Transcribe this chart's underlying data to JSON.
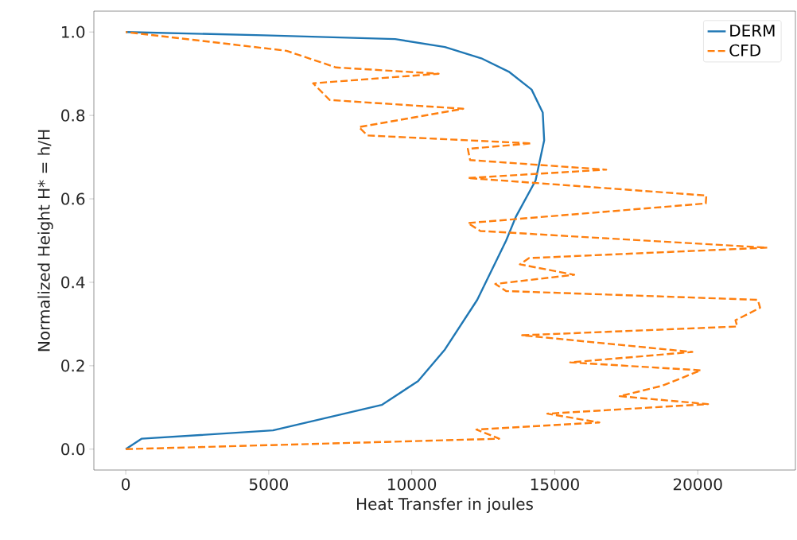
{
  "chart_data": {
    "type": "line",
    "xlabel": "Heat Transfer in joules",
    "ylabel": "Normalized Height H* = h/H",
    "xlim": [
      -1115,
      23415
    ],
    "ylim": [
      -0.05,
      1.05
    ],
    "xticks": [
      0,
      5000,
      10000,
      15000,
      20000
    ],
    "yticks": [
      {
        "value": 0,
        "label": "0.0"
      },
      {
        "value": 0.2,
        "label": "0.2"
      },
      {
        "value": 0.4,
        "label": "0.4"
      },
      {
        "value": 0.6,
        "label": "0.6"
      },
      {
        "value": 0.8,
        "label": "0.8"
      },
      {
        "value": 1,
        "label": "1.0"
      }
    ],
    "grid": false,
    "legend": "top right",
    "series": [
      {
        "name": "DERM",
        "color": "#1f77b4",
        "line_style": "solid",
        "x": [
          0,
          550,
          5150,
          8950,
          10220,
          11160,
          12290,
          13300,
          13640,
          14330,
          14630,
          14580,
          14190,
          13390,
          12430,
          11160,
          9420,
          4820,
          0
        ],
        "values": [
          0,
          0.025,
          0.045,
          0.106,
          0.163,
          0.239,
          0.358,
          0.5,
          0.557,
          0.644,
          0.74,
          0.807,
          0.862,
          0.905,
          0.937,
          0.964,
          0.983,
          0.992,
          1.0
        ]
      },
      {
        "name": "CFD",
        "color": "#ff7f0e",
        "line_style": "dashed",
        "x": [
          0,
          13060,
          12260,
          16560,
          14740,
          20360,
          17270,
          18760,
          20110,
          15540,
          19810,
          13860,
          21380,
          21320,
          22180,
          22100,
          13300,
          12920,
          15680,
          13780,
          14100,
          22430,
          12400,
          11960,
          20280,
          20300,
          11960,
          16800,
          12040,
          11960,
          14190,
          8450,
          8150,
          11800,
          7130,
          6550,
          10940,
          7350,
          5620,
          0
        ],
        "values": [
          0,
          0.025,
          0.047,
          0.064,
          0.085,
          0.108,
          0.127,
          0.152,
          0.189,
          0.208,
          0.233,
          0.273,
          0.294,
          0.309,
          0.339,
          0.358,
          0.379,
          0.396,
          0.418,
          0.443,
          0.458,
          0.483,
          0.523,
          0.542,
          0.589,
          0.608,
          0.65,
          0.67,
          0.693,
          0.72,
          0.733,
          0.752,
          0.772,
          0.816,
          0.837,
          0.877,
          0.9,
          0.915,
          0.955,
          1.0
        ]
      }
    ]
  }
}
